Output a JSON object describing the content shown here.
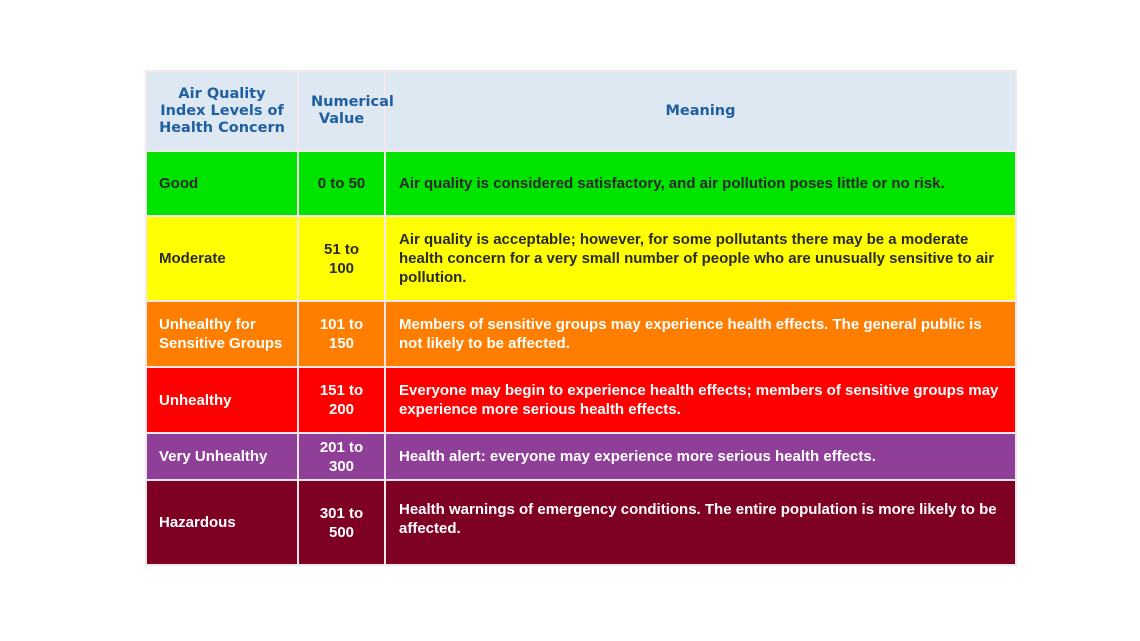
{
  "table": {
    "headers": {
      "level": "Air Quality Index Levels of Health Concern",
      "value": "Numerical Value",
      "meaning": "Meaning"
    },
    "rows": [
      {
        "level": "Good",
        "value": "0 to 50",
        "meaning": "Air quality is considered satisfactory, and air pollution poses little or no risk.",
        "color": "#00e400"
      },
      {
        "level": "Moderate",
        "value": "51 to 100",
        "meaning": "Air quality is acceptable; however, for some pollutants there may be a moderate health concern for a very small number of people who are unusually sensitive to air pollution.",
        "color": "#ffff00"
      },
      {
        "level": "Unhealthy for Sensitive Groups",
        "value": "101 to 150",
        "meaning": "Members of sensitive groups may experience health effects. The general public is not likely to be affected.",
        "color": "#ff7e00"
      },
      {
        "level": "Unhealthy",
        "value": "151 to 200",
        "meaning": "Everyone may begin to experience health effects; members of sensitive groups may experience more serious health effects.",
        "color": "#ff0000"
      },
      {
        "level": "Very Unhealthy",
        "value": "201 to 300",
        "meaning": "Health alert: everyone may experience more serious health effects.",
        "color": "#8f3f97"
      },
      {
        "level": "Hazardous",
        "value": "301 to 500",
        "meaning": "Health warnings of emergency conditions. The entire population is more likely to be affected.",
        "color": "#7e0023"
      }
    ]
  }
}
